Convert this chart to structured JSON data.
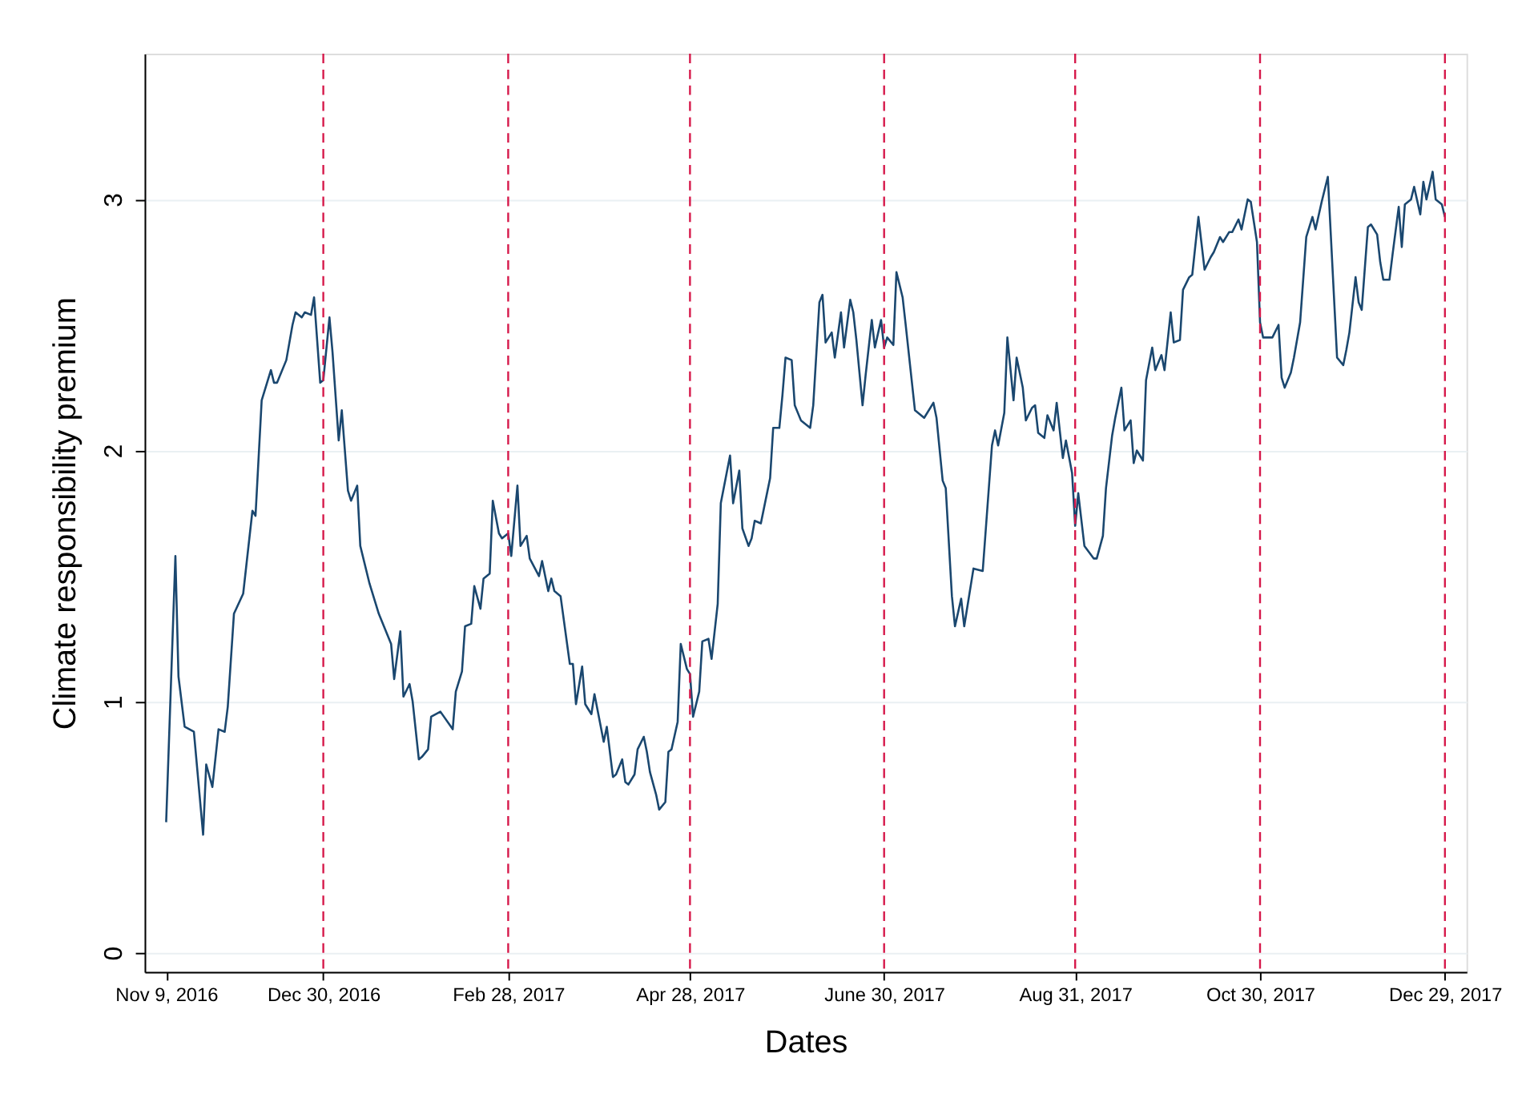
{
  "chart_data": {
    "type": "line",
    "xlabel": "Dates",
    "ylabel": "Climate responsibility premium",
    "xlim": [
      "2016-11-02",
      "2018-01-05"
    ],
    "ylim": [
      -0.076,
      3.58
    ],
    "yticks": [
      0,
      1,
      2,
      3
    ],
    "xticks": [
      {
        "value": "2016-11-09",
        "label": "Nov 9, 2016"
      },
      {
        "value": "2016-12-30",
        "label": "Dec 30, 2016"
      },
      {
        "value": "2017-02-28",
        "label": "Feb 28, 2017"
      },
      {
        "value": "2017-04-28",
        "label": "Apr 28, 2017"
      },
      {
        "value": "2017-06-30",
        "label": "June 30, 2017"
      },
      {
        "value": "2017-08-31",
        "label": "Aug 31, 2017"
      },
      {
        "value": "2017-10-30",
        "label": "Oct 30, 2017"
      },
      {
        "value": "2017-12-29",
        "label": "Dec 29, 2017"
      }
    ],
    "grid": "y",
    "legend": false,
    "line_style": "solid",
    "marker": "none",
    "ref_lines": [
      {
        "axis": "x",
        "value": "2016-12-30",
        "color": "#d6184a",
        "line_style": "dashed"
      },
      {
        "axis": "x",
        "value": "2017-02-28",
        "color": "#d6184a",
        "line_style": "dashed"
      },
      {
        "axis": "x",
        "value": "2017-04-28",
        "color": "#d6184a",
        "line_style": "dashed"
      },
      {
        "axis": "x",
        "value": "2017-06-30",
        "color": "#d6184a",
        "line_style": "dashed"
      },
      {
        "axis": "x",
        "value": "2017-08-31",
        "color": "#d6184a",
        "line_style": "dashed"
      },
      {
        "axis": "x",
        "value": "2017-10-30",
        "color": "#d6184a",
        "line_style": "dashed"
      },
      {
        "axis": "x",
        "value": "2017-12-29",
        "color": "#d6184a",
        "line_style": "dashed"
      }
    ],
    "series": [
      {
        "color": "#1a476f",
        "x": [
          "2016-11-09",
          "2016-11-12",
          "2016-11-13",
          "2016-11-15",
          "2016-11-18",
          "2016-11-21",
          "2016-11-22",
          "2016-11-24",
          "2016-11-26",
          "2016-11-28",
          "2016-11-29",
          "2016-12-01",
          "2016-12-04",
          "2016-12-05",
          "2016-12-07",
          "2016-12-08",
          "2016-12-10",
          "2016-12-13",
          "2016-12-14",
          "2016-12-15",
          "2016-12-18",
          "2016-12-20",
          "2016-12-21",
          "2016-12-23",
          "2016-12-24",
          "2016-12-26",
          "2016-12-27",
          "2016-12-29",
          "2016-12-30",
          "2017-01-01",
          "2017-01-02",
          "2017-01-04",
          "2017-01-05",
          "2017-01-07",
          "2017-01-08",
          "2017-01-10",
          "2017-01-11",
          "2017-01-14",
          "2017-01-17",
          "2017-01-21",
          "2017-01-22",
          "2017-01-24",
          "2017-01-25",
          "2017-01-27",
          "2017-01-28",
          "2017-01-30",
          "2017-01-31",
          "2017-02-02",
          "2017-02-03",
          "2017-02-06",
          "2017-02-10",
          "2017-02-11",
          "2017-02-13",
          "2017-02-14",
          "2017-02-16",
          "2017-02-17",
          "2017-02-19",
          "2017-02-20",
          "2017-02-22",
          "2017-02-23",
          "2017-02-25",
          "2017-02-26",
          "2017-02-28",
          "2017-03-01",
          "2017-03-03",
          "2017-03-04",
          "2017-03-06",
          "2017-03-07",
          "2017-03-10",
          "2017-03-11",
          "2017-03-13",
          "2017-03-14",
          "2017-03-15",
          "2017-03-17",
          "2017-03-20",
          "2017-03-21",
          "2017-03-22",
          "2017-03-24",
          "2017-03-25",
          "2017-03-27",
          "2017-03-28",
          "2017-03-31",
          "2017-04-01",
          "2017-04-03",
          "2017-04-04",
          "2017-04-06",
          "2017-04-07",
          "2017-04-08",
          "2017-04-10",
          "2017-04-11",
          "2017-04-13",
          "2017-04-14",
          "2017-04-15",
          "2017-04-17",
          "2017-04-18",
          "2017-04-20",
          "2017-04-21",
          "2017-04-22",
          "2017-04-24",
          "2017-04-25",
          "2017-04-27",
          "2017-04-28",
          "2017-04-29",
          "2017-05-01",
          "2017-05-02",
          "2017-05-04",
          "2017-05-05",
          "2017-05-07",
          "2017-05-08",
          "2017-05-11",
          "2017-05-12",
          "2017-05-14",
          "2017-05-15",
          "2017-05-17",
          "2017-05-18",
          "2017-05-19",
          "2017-05-21",
          "2017-05-22",
          "2017-05-24",
          "2017-05-25",
          "2017-05-27",
          "2017-05-28",
          "2017-05-29",
          "2017-05-31",
          "2017-06-01",
          "2017-06-03",
          "2017-06-06",
          "2017-06-07",
          "2017-06-09",
          "2017-06-10",
          "2017-06-11",
          "2017-06-13",
          "2017-06-14",
          "2017-06-16",
          "2017-06-17",
          "2017-06-19",
          "2017-06-20",
          "2017-06-21",
          "2017-06-23",
          "2017-06-24",
          "2017-06-26",
          "2017-06-27",
          "2017-06-29",
          "2017-06-30",
          "2017-07-01",
          "2017-07-03",
          "2017-07-04",
          "2017-07-06",
          "2017-07-07",
          "2017-07-10",
          "2017-07-13",
          "2017-07-16",
          "2017-07-17",
          "2017-07-19",
          "2017-07-20",
          "2017-07-22",
          "2017-07-23",
          "2017-07-25",
          "2017-07-26",
          "2017-07-29",
          "2017-08-01",
          "2017-08-04",
          "2017-08-05",
          "2017-08-06",
          "2017-08-08",
          "2017-08-09",
          "2017-08-11",
          "2017-08-12",
          "2017-08-14",
          "2017-08-15",
          "2017-08-17",
          "2017-08-18",
          "2017-08-19",
          "2017-08-21",
          "2017-08-22",
          "2017-08-24",
          "2017-08-25",
          "2017-08-27",
          "2017-08-28",
          "2017-08-30",
          "2017-08-31",
          "2017-09-01",
          "2017-09-03",
          "2017-09-06",
          "2017-09-07",
          "2017-09-09",
          "2017-09-10",
          "2017-09-12",
          "2017-09-13",
          "2017-09-15",
          "2017-09-16",
          "2017-09-18",
          "2017-09-19",
          "2017-09-20",
          "2017-09-22",
          "2017-09-23",
          "2017-09-25",
          "2017-09-26",
          "2017-09-28",
          "2017-09-29",
          "2017-10-01",
          "2017-10-02",
          "2017-10-04",
          "2017-10-05",
          "2017-10-07",
          "2017-10-08",
          "2017-10-10",
          "2017-10-12",
          "2017-10-14",
          "2017-10-15",
          "2017-10-17",
          "2017-10-18",
          "2017-10-20",
          "2017-10-21",
          "2017-10-23",
          "2017-10-24",
          "2017-10-26",
          "2017-10-27",
          "2017-10-29",
          "2017-10-30",
          "2017-10-31",
          "2017-11-03",
          "2017-11-05",
          "2017-11-06",
          "2017-11-07",
          "2017-11-09",
          "2017-11-10",
          "2017-11-12",
          "2017-11-14",
          "2017-11-16",
          "2017-11-17",
          "2017-11-19",
          "2017-11-21",
          "2017-11-24",
          "2017-11-26",
          "2017-11-27",
          "2017-11-28",
          "2017-11-30",
          "2017-12-01",
          "2017-12-02",
          "2017-12-04",
          "2017-12-05",
          "2017-12-07",
          "2017-12-08",
          "2017-12-09",
          "2017-12-11",
          "2017-12-12",
          "2017-12-14",
          "2017-12-15",
          "2017-12-16",
          "2017-12-18",
          "2017-12-19",
          "2017-12-21",
          "2017-12-22",
          "2017-12-23",
          "2017-12-25",
          "2017-12-26",
          "2017-12-28",
          "2017-12-29"
        ],
        "values": [
          0.52,
          1.58,
          1.1,
          0.9,
          0.88,
          0.47,
          0.75,
          0.66,
          0.89,
          0.88,
          0.98,
          1.35,
          1.43,
          1.54,
          1.76,
          1.74,
          2.2,
          2.32,
          2.27,
          2.27,
          2.36,
          2.5,
          2.55,
          2.53,
          2.55,
          2.54,
          2.61,
          2.27,
          2.28,
          2.53,
          2.39,
          2.04,
          2.16,
          1.84,
          1.8,
          1.86,
          1.62,
          1.47,
          1.35,
          1.23,
          1.09,
          1.28,
          1.02,
          1.07,
          1.0,
          0.77,
          0.78,
          0.81,
          0.94,
          0.96,
          0.89,
          1.04,
          1.12,
          1.3,
          1.31,
          1.46,
          1.37,
          1.49,
          1.51,
          1.8,
          1.67,
          1.65,
          1.67,
          1.58,
          1.86,
          1.62,
          1.66,
          1.57,
          1.5,
          1.56,
          1.44,
          1.49,
          1.44,
          1.42,
          1.15,
          1.15,
          0.99,
          1.14,
          0.99,
          0.95,
          1.03,
          0.84,
          0.9,
          0.7,
          0.71,
          0.77,
          0.68,
          0.67,
          0.71,
          0.81,
          0.86,
          0.8,
          0.72,
          0.63,
          0.57,
          0.6,
          0.8,
          0.81,
          0.92,
          1.23,
          1.13,
          1.11,
          0.94,
          1.04,
          1.24,
          1.25,
          1.17,
          1.39,
          1.79,
          1.98,
          1.79,
          1.92,
          1.69,
          1.62,
          1.65,
          1.72,
          1.71,
          1.77,
          1.89,
          2.09,
          2.09,
          2.22,
          2.37,
          2.36,
          2.18,
          2.12,
          2.09,
          2.18,
          2.59,
          2.62,
          2.43,
          2.47,
          2.37,
          2.55,
          2.41,
          2.6,
          2.55,
          2.44,
          2.18,
          2.3,
          2.52,
          2.41,
          2.52,
          2.41,
          2.45,
          2.42,
          2.71,
          2.61,
          2.5,
          2.16,
          2.13,
          2.19,
          2.13,
          1.88,
          1.85,
          1.42,
          1.3,
          1.41,
          1.3,
          1.53,
          1.52,
          2.02,
          2.08,
          2.02,
          2.15,
          2.45,
          2.2,
          2.37,
          2.25,
          2.12,
          2.17,
          2.18,
          2.07,
          2.05,
          2.14,
          2.08,
          2.19,
          1.97,
          2.04,
          1.91,
          1.7,
          1.83,
          1.62,
          1.57,
          1.57,
          1.66,
          1.85,
          2.06,
          2.13,
          2.25,
          2.08,
          2.12,
          1.95,
          2.0,
          1.96,
          2.28,
          2.41,
          2.32,
          2.38,
          2.32,
          2.55,
          2.43,
          2.44,
          2.64,
          2.69,
          2.7,
          2.93,
          2.72,
          2.77,
          2.79,
          2.85,
          2.83,
          2.87,
          2.87,
          2.92,
          2.88,
          3.0,
          2.99,
          2.83,
          2.51,
          2.45,
          2.45,
          2.5,
          2.29,
          2.25,
          2.31,
          2.37,
          2.51,
          2.85,
          2.93,
          2.88,
          2.99,
          3.09,
          2.37,
          2.34,
          2.4,
          2.47,
          2.69,
          2.59,
          2.56,
          2.89,
          2.9,
          2.86,
          2.75,
          2.68,
          2.68,
          2.78,
          2.97,
          2.81,
          2.98,
          3.0,
          3.05,
          2.94,
          3.07,
          3.0,
          3.11,
          3.0,
          2.98,
          2.93
        ]
      }
    ]
  }
}
